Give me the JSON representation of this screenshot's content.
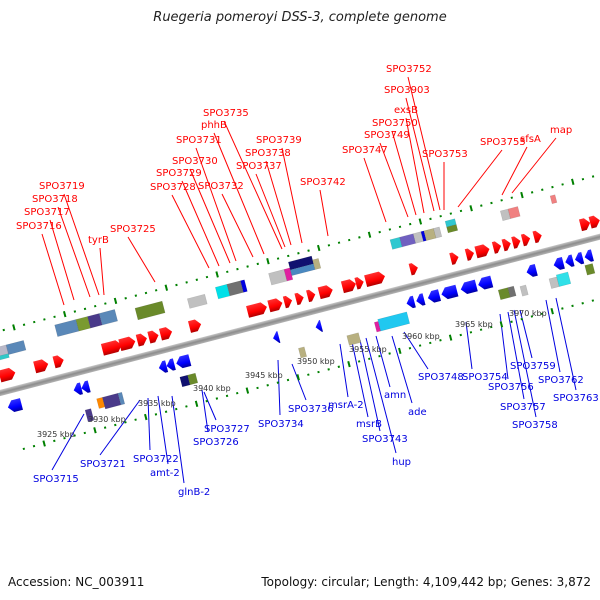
{
  "title": "Ruegeria pomeroyi DSS-3, complete genome",
  "footer": {
    "accession": "Accession: NC_003911",
    "summary": "Topology: circular; Length: 4,109,442 bp; Genes: 3,872"
  },
  "colors": {
    "forward_label": "#ff0000",
    "reverse_label": "#0000e0",
    "forward_gene": "#ff0000",
    "reverse_gene": "#0000ff",
    "tick": "#008000",
    "backbone": "#999999"
  },
  "kbp_ticks": [
    "3925 kbp",
    "3930 kbp",
    "3935 kbp",
    "3940 kbp",
    "3945 kbp",
    "3950 kbp",
    "3955 kbp",
    "3960 kbp",
    "3965 kbp",
    "3970 kbp"
  ],
  "forward_labels": [
    {
      "text": "SPO3716"
    },
    {
      "text": "SPO3717"
    },
    {
      "text": "SPO3718"
    },
    {
      "text": "SPO3719"
    },
    {
      "text": "tyrB"
    },
    {
      "text": "SPO3725"
    },
    {
      "text": "SPO3728"
    },
    {
      "text": "SPO3729"
    },
    {
      "text": "SPO3730"
    },
    {
      "text": "SPO3731"
    },
    {
      "text": "SPO3732"
    },
    {
      "text": "phhB"
    },
    {
      "text": "SPO3735"
    },
    {
      "text": "SPO3737"
    },
    {
      "text": "SPO3738"
    },
    {
      "text": "SPO3739"
    },
    {
      "text": "SPO3742"
    },
    {
      "text": "SPO3747"
    },
    {
      "text": "SPO3749"
    },
    {
      "text": "SPO3750"
    },
    {
      "text": "exsB"
    },
    {
      "text": "SPO3903"
    },
    {
      "text": "SPO3752"
    },
    {
      "text": "SPO3753"
    },
    {
      "text": "SPO3755"
    },
    {
      "text": "sfsA"
    },
    {
      "text": "map"
    }
  ],
  "reverse_labels": [
    {
      "text": "SPO3715"
    },
    {
      "text": "SPO3721"
    },
    {
      "text": "SPO3722"
    },
    {
      "text": "amt-2"
    },
    {
      "text": "glnB-2"
    },
    {
      "text": "SPO3726"
    },
    {
      "text": "SPO3727"
    },
    {
      "text": "SPO3734"
    },
    {
      "text": "SPO3736"
    },
    {
      "text": "msrA-2"
    },
    {
      "text": "msrB"
    },
    {
      "text": "SPO3743"
    },
    {
      "text": "hup"
    },
    {
      "text": "amn"
    },
    {
      "text": "ade"
    },
    {
      "text": "SPO3748"
    },
    {
      "text": "SPO3754"
    },
    {
      "text": "SPO3756"
    },
    {
      "text": "SPO3757"
    },
    {
      "text": "SPO3758"
    },
    {
      "text": "SPO3759"
    },
    {
      "text": "SPO3762"
    },
    {
      "text": "SPO3763"
    }
  ]
}
